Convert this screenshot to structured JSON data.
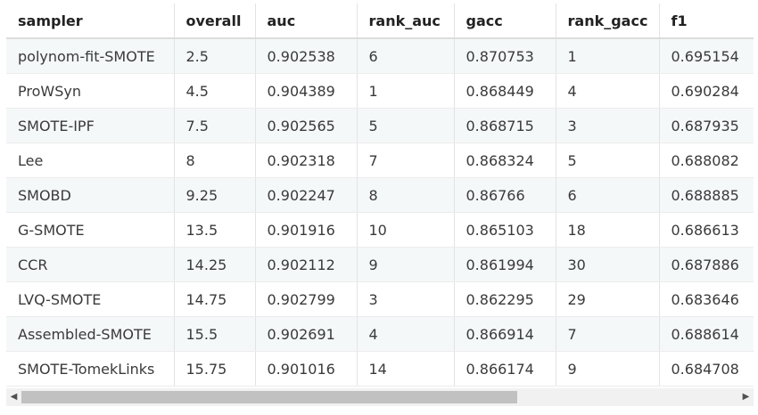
{
  "table": {
    "columns": [
      "sampler",
      "overall",
      "auc",
      "rank_auc",
      "gacc",
      "rank_gacc",
      "f1"
    ],
    "rows": [
      [
        "polynom-fit-SMOTE",
        "2.5",
        "0.902538",
        "6",
        "0.870753",
        "1",
        "0.695154"
      ],
      [
        "ProWSyn",
        "4.5",
        "0.904389",
        "1",
        "0.868449",
        "4",
        "0.690284"
      ],
      [
        "SMOTE-IPF",
        "7.5",
        "0.902565",
        "5",
        "0.868715",
        "3",
        "0.687935"
      ],
      [
        "Lee",
        "8",
        "0.902318",
        "7",
        "0.868324",
        "5",
        "0.688082"
      ],
      [
        "SMOBD",
        "9.25",
        "0.902247",
        "8",
        "0.86766",
        "6",
        "0.688885"
      ],
      [
        "G-SMOTE",
        "13.5",
        "0.901916",
        "10",
        "0.865103",
        "18",
        "0.686613"
      ],
      [
        "CCR",
        "14.25",
        "0.902112",
        "9",
        "0.861994",
        "30",
        "0.687886"
      ],
      [
        "LVQ-SMOTE",
        "14.75",
        "0.902799",
        "3",
        "0.862295",
        "29",
        "0.683646"
      ],
      [
        "Assembled-SMOTE",
        "15.5",
        "0.902691",
        "4",
        "0.866914",
        "7",
        "0.688614"
      ],
      [
        "SMOTE-TomekLinks",
        "15.75",
        "0.901016",
        "14",
        "0.866174",
        "9",
        "0.684708"
      ]
    ]
  },
  "scrollbar": {
    "left_icon": "triangle-left-icon",
    "right_icon": "triangle-right-icon",
    "left_glyph": "◀",
    "right_glyph": "▶"
  }
}
